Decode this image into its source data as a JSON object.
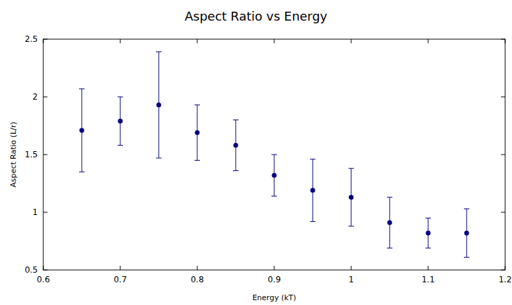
{
  "chart_data": {
    "type": "scatter",
    "title": "Aspect Ratio vs Energy",
    "x_label": "Energy (kT)",
    "y_label": "Aspect Ratio (L/r)",
    "series": [
      {
        "color": "#000080",
        "marker": "circle",
        "x": [
          0.65,
          0.7,
          0.75,
          0.8,
          0.85,
          0.9,
          0.95,
          1.0,
          1.05,
          1.1,
          1.15
        ],
        "values": [
          1.71,
          1.79,
          1.93,
          1.69,
          1.58,
          1.32,
          1.19,
          1.13,
          0.91,
          0.82,
          0.82
        ],
        "errors": [
          0.36,
          0.21,
          0.46,
          0.24,
          0.22,
          0.18,
          0.27,
          0.25,
          0.22,
          0.13,
          0.21
        ]
      }
    ],
    "xlim": [
      0.6,
      1.2
    ],
    "xticks": [
      0.6,
      0.7,
      0.8,
      0.9,
      1,
      1.1,
      1.2
    ],
    "ylim": [
      0.5,
      2.5
    ],
    "yticks": [
      0.5,
      1,
      1.5,
      2,
      2.5
    ],
    "grid": false
  }
}
